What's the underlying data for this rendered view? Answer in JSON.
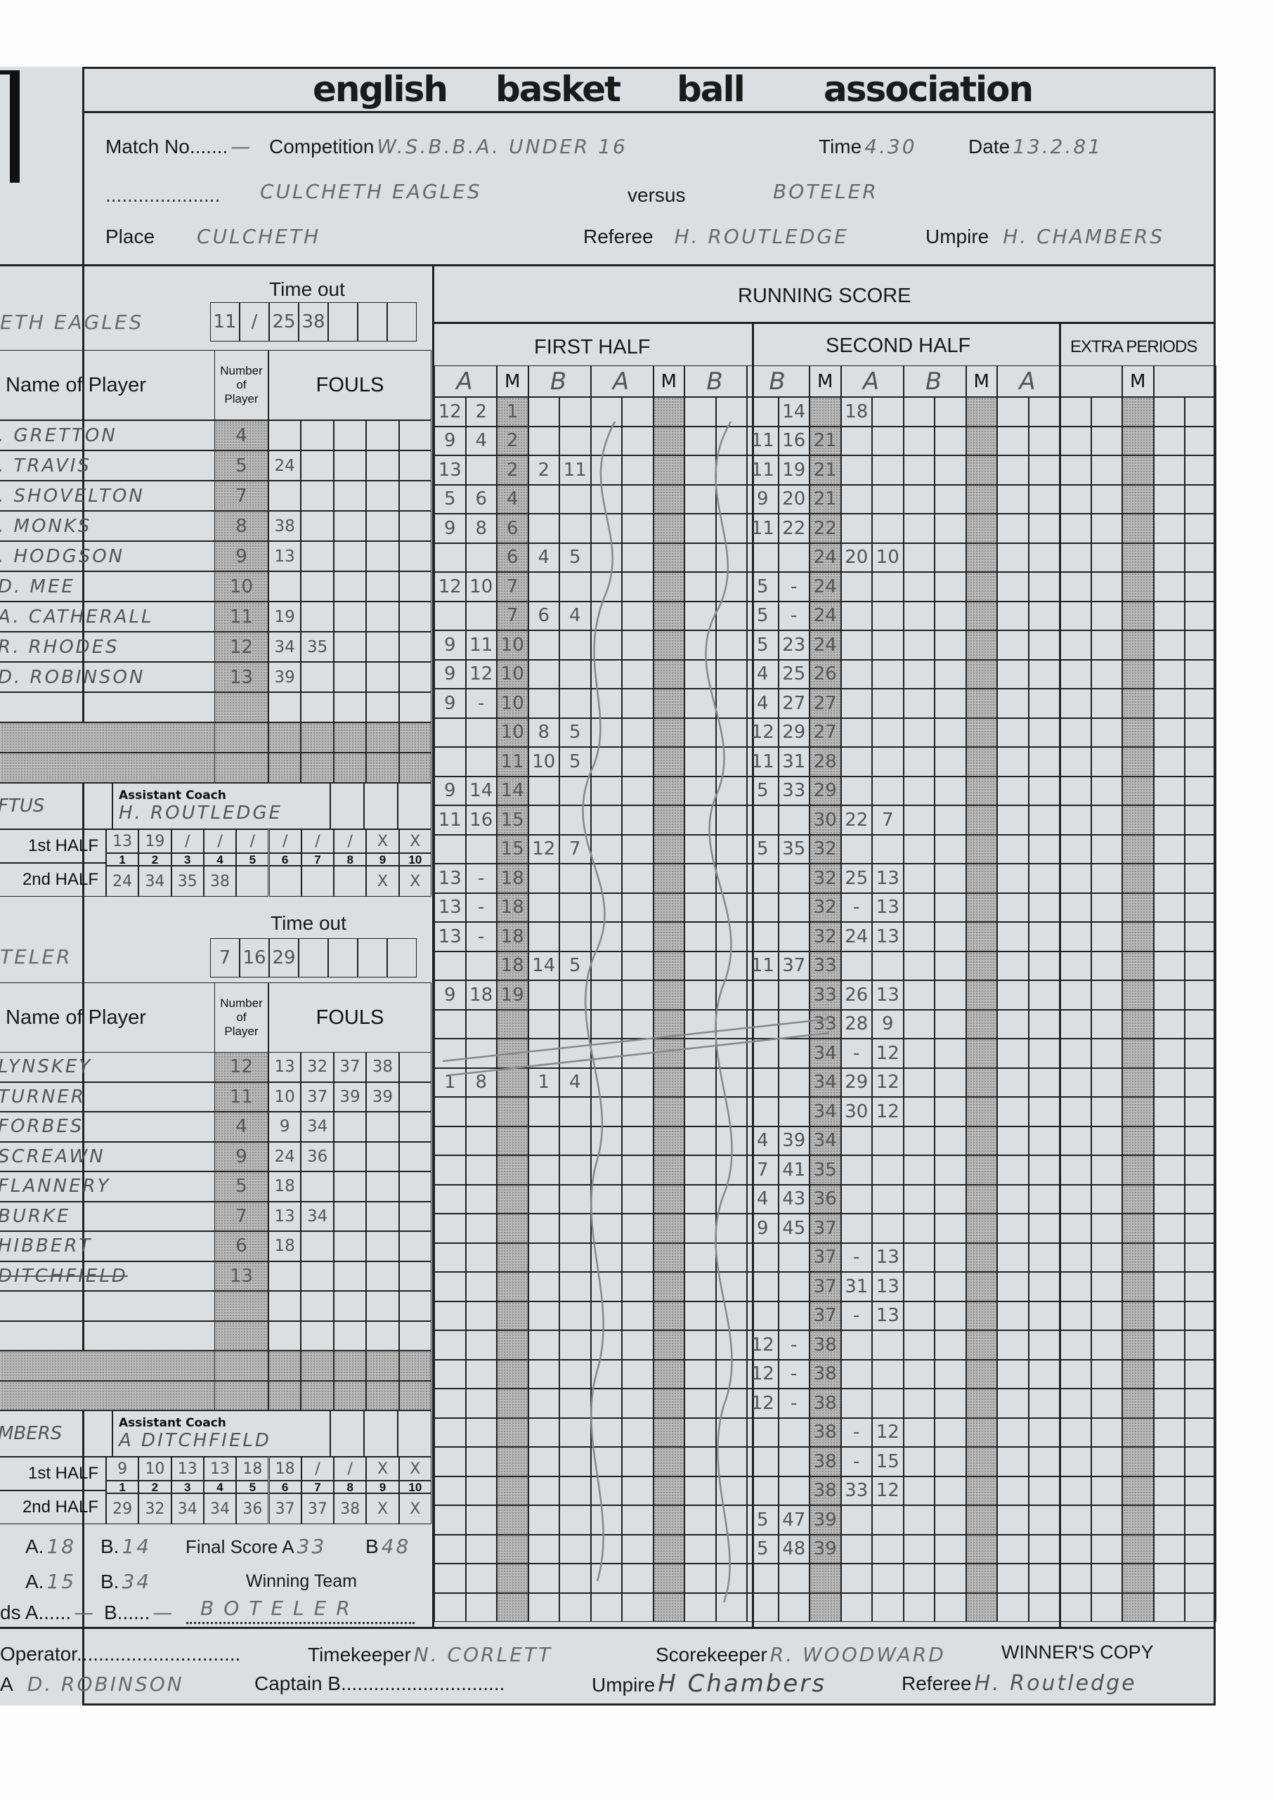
{
  "header": {
    "title_words": [
      "english",
      "basket",
      "ball",
      "association"
    ],
    "match_no_label": "Match No.......",
    "match_no": "—",
    "competition_label": "Competition",
    "competition": "W.S.B.B.A. UNDER 16",
    "time_label": "Time",
    "time": "4.30",
    "date_label": "Date",
    "date": "13.2.81",
    "team_a": "CULCHETH EAGLES",
    "versus_label": "versus",
    "team_b": "BOTELER",
    "place_label": "Place",
    "place": "CULCHETH",
    "referee_label": "Referee",
    "referee": "H. ROUTLEDGE",
    "umpire_label": "Umpire",
    "umpire": "H. CHAMBERS"
  },
  "labels": {
    "time_out": "Time out",
    "name_of_player": "Name of Player",
    "number_of_player": [
      "Number",
      "of",
      "Player"
    ],
    "fouls": "FOULS",
    "assistant_coach": "Assistant Coach",
    "first_half": "1st HALF",
    "second_half": "2nd HALF",
    "foul_numbers": [
      "1",
      "2",
      "3",
      "4",
      "5",
      "6",
      "7",
      "8",
      "9",
      "10"
    ]
  },
  "team_a_panel": {
    "team_name": "ETH EAGLES",
    "time_outs": [
      "11",
      "/",
      "25",
      "38",
      "",
      "",
      ""
    ],
    "players": [
      {
        "name": ". GRETTON",
        "number": "4",
        "fouls": []
      },
      {
        "name": ". TRAVIS",
        "number": "5",
        "fouls": [
          "24"
        ]
      },
      {
        "name": ". SHOVELTON",
        "number": "7",
        "fouls": []
      },
      {
        "name": ". MONKS",
        "number": "8",
        "fouls": [
          "38"
        ]
      },
      {
        "name": ". HODGSON",
        "number": "9",
        "fouls": [
          "13"
        ]
      },
      {
        "name": "D. MEE",
        "number": "10",
        "fouls": []
      },
      {
        "name": "A. CATHERALL",
        "number": "11",
        "fouls": [
          "19"
        ]
      },
      {
        "name": "R. RHODES",
        "number": "12",
        "fouls": [
          "34",
          "35"
        ]
      },
      {
        "name": "D. ROBINSON",
        "number": "13",
        "fouls": [
          "39"
        ]
      }
    ],
    "coach": "FTUS",
    "assistant_coach": "H. ROUTLEDGE",
    "team_fouls_first": [
      "13",
      "19",
      "/",
      "/",
      "/",
      "/",
      "/",
      "/",
      "X",
      "X"
    ],
    "team_fouls_second": [
      "24",
      "34",
      "35",
      "38",
      "",
      "",
      "",
      "",
      "X",
      "X"
    ]
  },
  "team_b_panel": {
    "team_name": "TELER",
    "time_outs": [
      "7",
      "16",
      "29",
      "",
      "",
      "",
      ""
    ],
    "players": [
      {
        "name": "LYNSKEY",
        "number": "12",
        "fouls": [
          "13",
          "32",
          "37",
          "38"
        ]
      },
      {
        "name": "TURNER",
        "number": "11",
        "fouls": [
          "10",
          "37",
          "39",
          "39"
        ]
      },
      {
        "name": "FORBES",
        "number": "4",
        "fouls": [
          "9",
          "34"
        ]
      },
      {
        "name": "SCREAWN",
        "number": "9",
        "fouls": [
          "24",
          "36"
        ]
      },
      {
        "name": "FLANNERY",
        "number": "5",
        "fouls": [
          "18"
        ]
      },
      {
        "name": "BURKE",
        "number": "7",
        "fouls": [
          "13",
          "34"
        ]
      },
      {
        "name": "HIBBERT",
        "number": "6",
        "fouls": [
          "18"
        ]
      },
      {
        "name": "DITCHFIELD",
        "number": "13",
        "fouls": [],
        "struck": true
      }
    ],
    "coach": "MBERS",
    "assistant_coach": "A DITCHFIELD",
    "team_fouls_first": [
      "9",
      "10",
      "13",
      "13",
      "18",
      "18",
      "/",
      "/",
      "X",
      "X"
    ],
    "team_fouls_second": [
      "29",
      "32",
      "34",
      "34",
      "36",
      "37",
      "37",
      "38",
      "X",
      "X"
    ]
  },
  "scores": {
    "half_time_a_label": "A.",
    "half_time_a": "18",
    "half_time_b_label": "B.",
    "half_time_b": "14",
    "second_half_a_label": "A.",
    "second_half_a": "15",
    "second_half_b_label": "B.",
    "second_half_b": "34",
    "extra_a_label": "ds A......",
    "extra_a": "—",
    "extra_b_label": "B......",
    "extra_b": "—",
    "final_label": "Final Score A",
    "final_a": "33",
    "final_b_label": "B",
    "final_b": "48",
    "winning_team_label": "Winning Team",
    "winning_team": "BOTELER"
  },
  "running_score": {
    "title": "RUNNING SCORE",
    "first_half_label": "FIRST HALF",
    "second_half_label": "SECOND HALF",
    "extra_label": "EXTRA PERIODS",
    "column_headers": [
      "A",
      "M",
      "B",
      "A",
      "M",
      "B",
      "B",
      "M",
      "A",
      "B",
      "M",
      "A",
      "",
      "M",
      ""
    ],
    "first_half_rows": [
      [
        "12",
        "2",
        "1",
        "",
        ""
      ],
      [
        "9",
        "4",
        "2",
        "",
        ""
      ],
      [
        "13",
        "",
        "2",
        "2",
        "11"
      ],
      [
        "5",
        "6",
        "4",
        "",
        ""
      ],
      [
        "9",
        "8",
        "6",
        "",
        ""
      ],
      [
        "",
        "",
        "6",
        "4",
        "5"
      ],
      [
        "12",
        "10",
        "7",
        "",
        ""
      ],
      [
        "",
        "",
        "7",
        "6",
        "4"
      ],
      [
        "9",
        "11",
        "10",
        "",
        ""
      ],
      [
        "9",
        "12",
        "10",
        "",
        ""
      ],
      [
        "9",
        "-",
        "10",
        "",
        ""
      ],
      [
        "",
        "",
        "10",
        "8",
        "5"
      ],
      [
        "",
        "",
        "11",
        "10",
        "5"
      ],
      [
        "9",
        "14",
        "14",
        "",
        ""
      ],
      [
        "11",
        "16",
        "15",
        "",
        ""
      ],
      [
        "",
        "",
        "15",
        "12",
        "7"
      ],
      [
        "13",
        "-",
        "18",
        "",
        ""
      ],
      [
        "13",
        "-",
        "18",
        "",
        ""
      ],
      [
        "13",
        "-",
        "18",
        "",
        ""
      ],
      [
        "",
        "",
        "18",
        "14",
        "5"
      ],
      [
        "9",
        "18",
        "19",
        "",
        ""
      ],
      [
        "",
        "",
        "",
        "",
        ""
      ],
      [
        "",
        "",
        "",
        "",
        ""
      ],
      [
        "1",
        "8",
        "",
        "1",
        "4"
      ]
    ],
    "second_half_rows": [
      [
        "",
        "14",
        "",
        "18",
        ""
      ],
      [
        "11",
        "16",
        "21",
        "",
        ""
      ],
      [
        "11",
        "19",
        "21",
        "",
        ""
      ],
      [
        "9",
        "20",
        "21",
        "",
        ""
      ],
      [
        "11",
        "22",
        "22",
        "",
        ""
      ],
      [
        "",
        "",
        "24",
        "20",
        "10"
      ],
      [
        "5",
        "-",
        "24",
        "",
        ""
      ],
      [
        "5",
        "-",
        "24",
        "",
        ""
      ],
      [
        "5",
        "23",
        "24",
        "",
        ""
      ],
      [
        "4",
        "25",
        "26",
        "",
        ""
      ],
      [
        "4",
        "27",
        "27",
        "",
        ""
      ],
      [
        "12",
        "29",
        "27",
        "",
        ""
      ],
      [
        "11",
        "31",
        "28",
        "",
        ""
      ],
      [
        "5",
        "33",
        "29",
        "",
        ""
      ],
      [
        "",
        "",
        "30",
        "22",
        "7"
      ],
      [
        "5",
        "35",
        "32",
        "",
        ""
      ],
      [
        "",
        "",
        "32",
        "25",
        "13"
      ],
      [
        "",
        "",
        "32",
        "-",
        "13"
      ],
      [
        "",
        "",
        "32",
        "24",
        "13"
      ],
      [
        "11",
        "37",
        "33",
        "",
        ""
      ],
      [
        "",
        "",
        "33",
        "26",
        "13"
      ],
      [
        "",
        "",
        "33",
        "28",
        "9"
      ],
      [
        "",
        "",
        "34",
        "-",
        "12"
      ],
      [
        "",
        "",
        "34",
        "29",
        "12"
      ],
      [
        "",
        "",
        "34",
        "30",
        "12"
      ],
      [
        "4",
        "39",
        "34",
        "",
        ""
      ],
      [
        "7",
        "41",
        "35",
        "",
        ""
      ],
      [
        "4",
        "43",
        "36",
        "",
        ""
      ],
      [
        "9",
        "45",
        "37",
        "",
        ""
      ],
      [
        "",
        "",
        "37",
        "-",
        "13"
      ],
      [
        "",
        "",
        "37",
        "31",
        "13"
      ],
      [
        "",
        "",
        "37",
        "-",
        "13"
      ],
      [
        "12",
        "-",
        "38",
        "",
        ""
      ],
      [
        "12",
        "-",
        "38",
        "",
        ""
      ],
      [
        "12",
        "-",
        "38",
        "",
        ""
      ],
      [
        "",
        "",
        "38",
        "-",
        "12"
      ],
      [
        "",
        "",
        "38",
        "-",
        "15"
      ],
      [
        "",
        "",
        "38",
        "33",
        "12"
      ],
      [
        "5",
        "47",
        "39",
        "",
        ""
      ],
      [
        "5",
        "48",
        "39",
        "",
        ""
      ]
    ]
  },
  "footer": {
    "operator_label": "Operator..............................",
    "timekeeper_label": "Timekeeper",
    "timekeeper": "N. CORLETT",
    "scorekeeper_label": "Scorekeeper",
    "scorekeeper": "R. WOODWARD",
    "copy_label": "WINNER'S COPY",
    "captain_a_label": "A",
    "captain_a": "D. ROBINSON",
    "captain_b_label": "Captain B..............................",
    "umpire_label": "Umpire",
    "umpire": "H Chambers",
    "referee_label": "Referee",
    "referee": "H. Routledge"
  },
  "colors": {
    "paper": "#dcdee0",
    "ink": "#1a1a1a",
    "pencil": "#6a6a6a",
    "shade": "#b9b9b9"
  }
}
